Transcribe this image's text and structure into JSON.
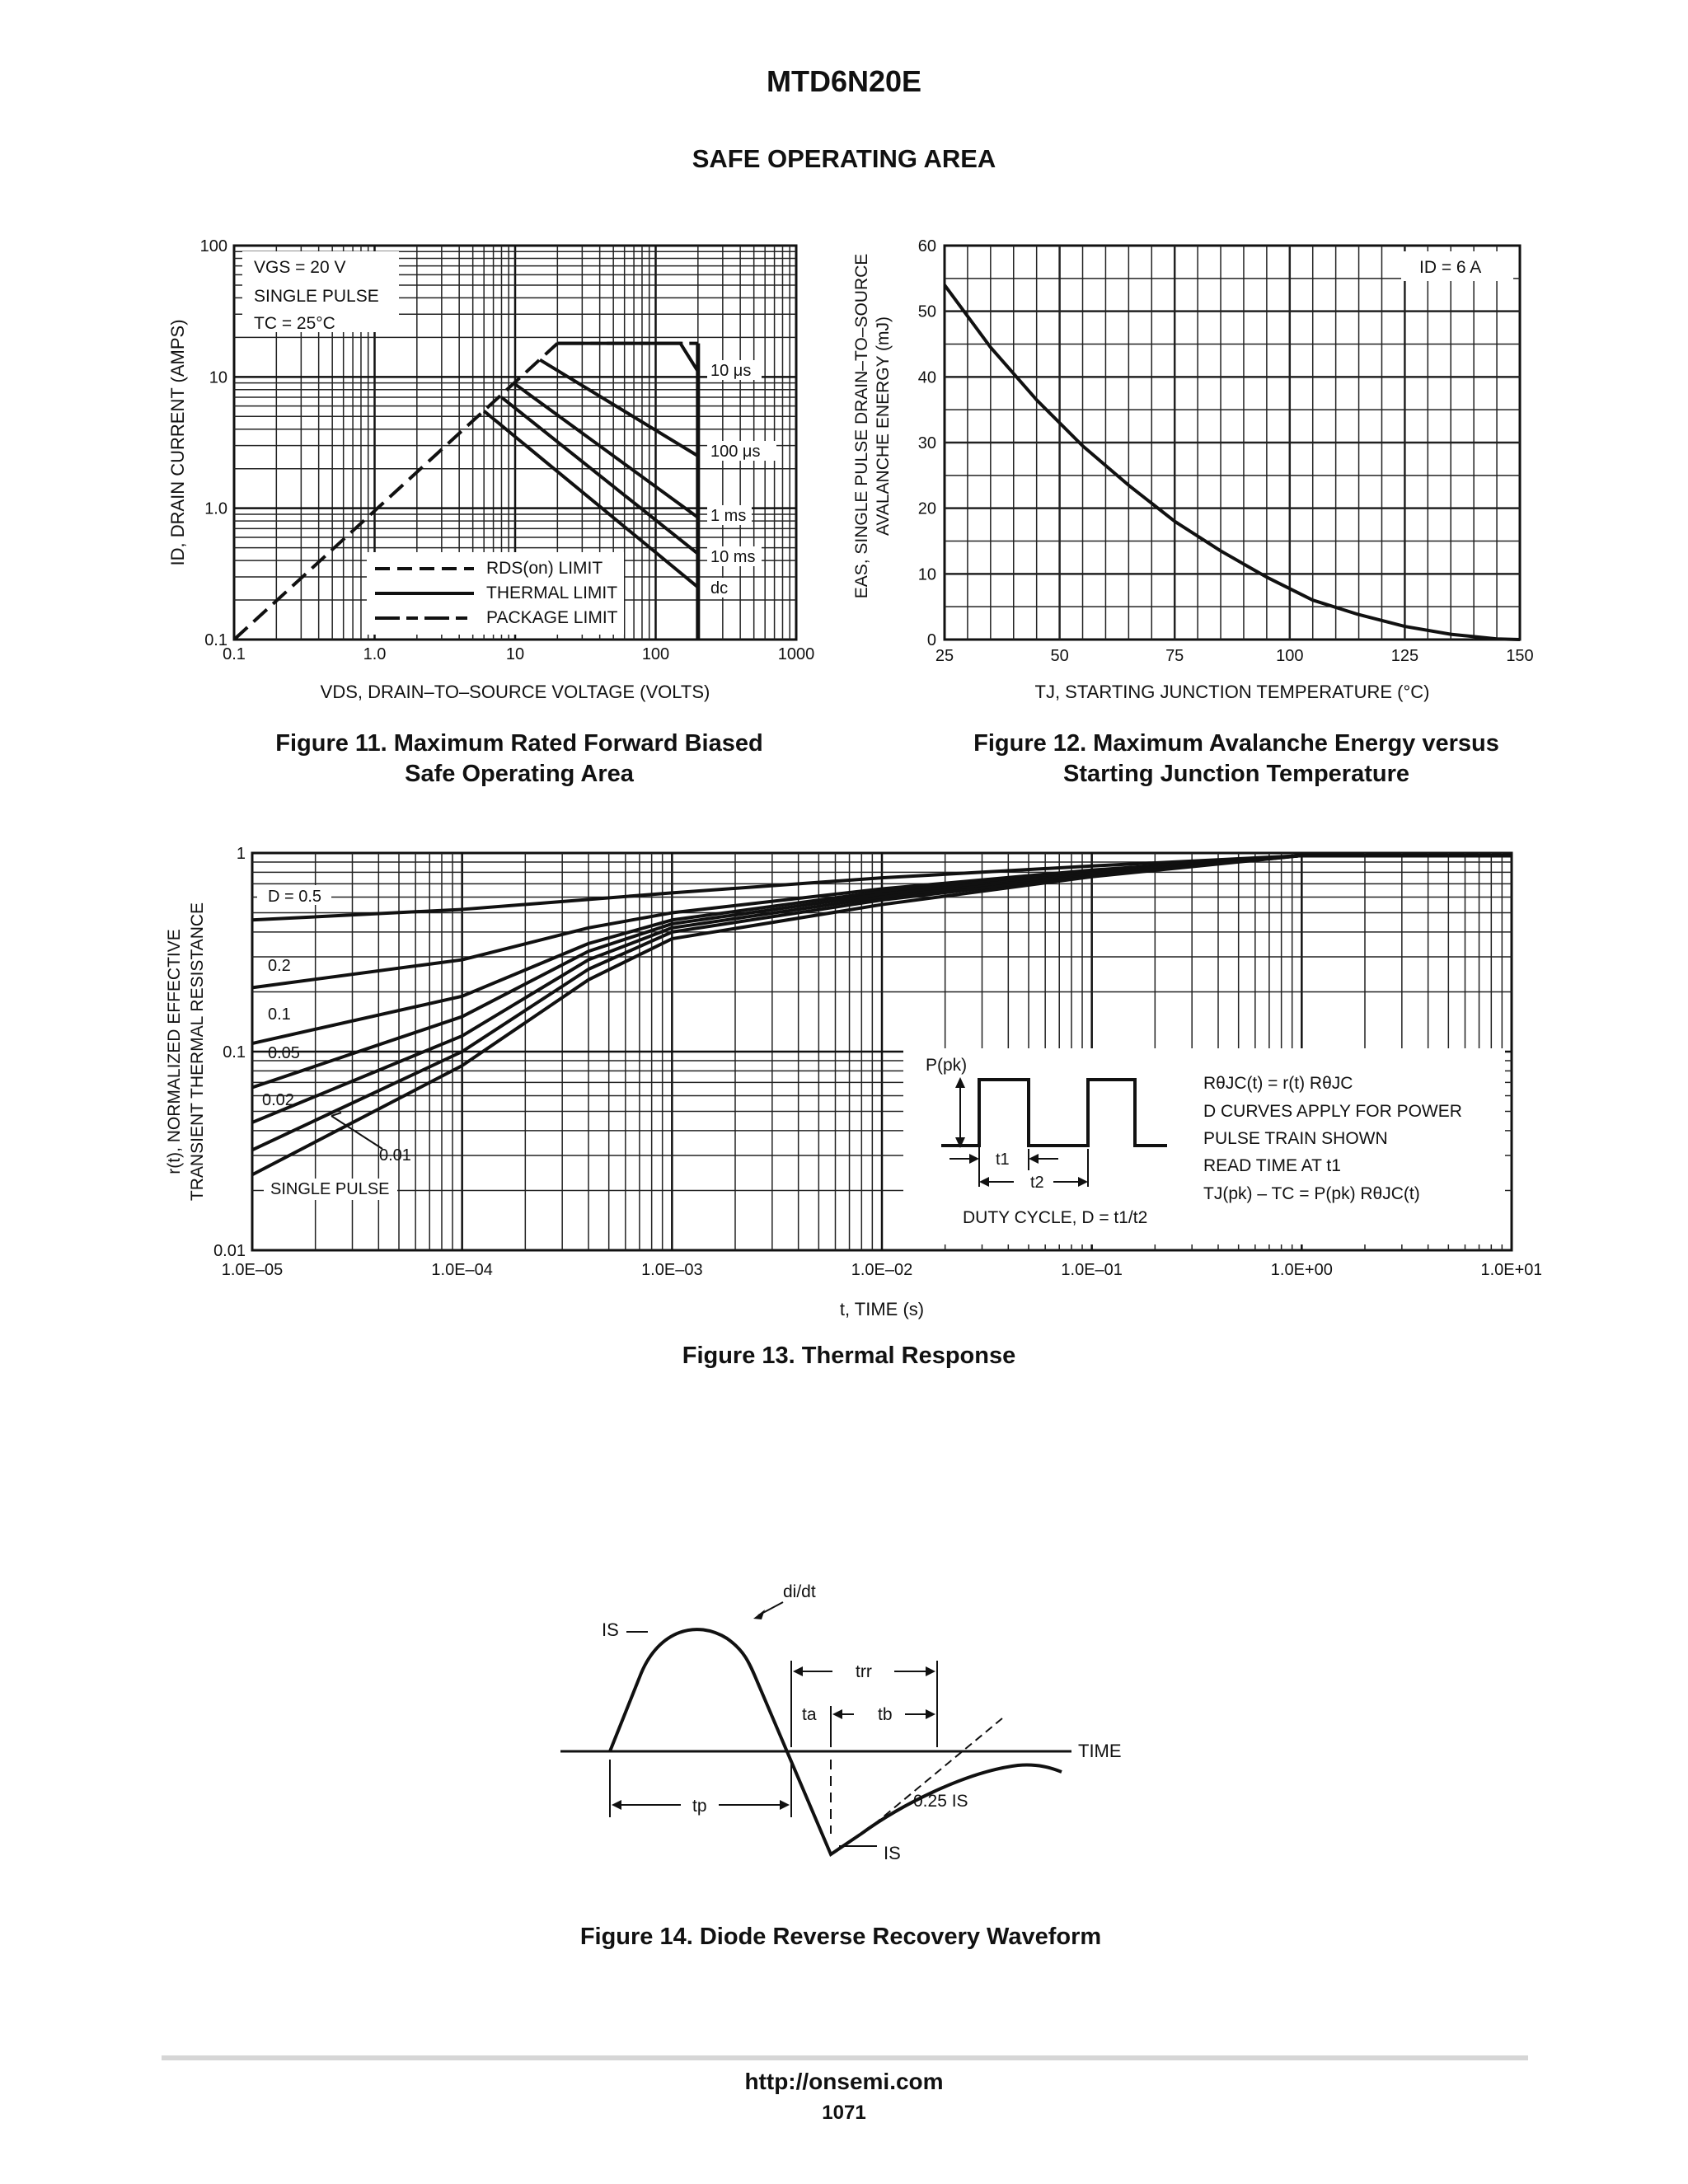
{
  "header": {
    "part_number": "MTD6N20E",
    "section": "SAFE OPERATING AREA"
  },
  "fig11": {
    "caption_line1": "Figure 11. Maximum Rated Forward Biased",
    "caption_line2": "Safe Operating Area",
    "ylabel": "ID, DRAIN CURRENT (AMPS)",
    "xlabel": "VDS, DRAIN–TO–SOURCE VOLTAGE (VOLTS)",
    "conditions": [
      "VGS = 20 V",
      "SINGLE PULSE",
      "TC = 25°C"
    ],
    "legend": [
      "RDS(on) LIMIT",
      "THERMAL LIMIT",
      "PACKAGE LIMIT"
    ],
    "curve_labels": [
      "10 μs",
      "100 μs",
      "1 ms",
      "10 ms",
      "dc"
    ]
  },
  "fig12": {
    "caption_line1": "Figure 12. Maximum Avalanche Energy versus",
    "caption_line2": "Starting Junction Temperature",
    "ylabel_line1": "EAS, SINGLE PULSE DRAIN–TO–SOURCE",
    "ylabel_line2": "AVALANCHE ENERGY (mJ)",
    "xlabel": "TJ, STARTING JUNCTION TEMPERATURE (°C)",
    "condition": "ID = 6 A"
  },
  "fig13": {
    "caption": "Figure 13. Thermal Response",
    "ylabel_line1": "r(t), NORMALIZED EFFECTIVE",
    "ylabel_line2": "TRANSIENT THERMAL RESISTANCE",
    "xlabel": "t, TIME (s)",
    "curve_labels": [
      "D = 0.5",
      "0.2",
      "0.1",
      "0.05",
      "0.02",
      "0.01",
      "SINGLE PULSE"
    ],
    "inset_ppk": "P(pk)",
    "inset_t1": "t1",
    "inset_t2": "t2",
    "inset_duty": "DUTY CYCLE, D = t1/t2",
    "notes": [
      "RθJC(t) = r(t) RθJC",
      "D CURVES APPLY FOR POWER",
      "PULSE TRAIN SHOWN",
      "READ TIME AT t1",
      "TJ(pk) – TC = P(pk) RθJC(t)"
    ]
  },
  "fig14": {
    "caption": "Figure 14. Diode Reverse Recovery Waveform",
    "labels": {
      "didt": "di/dt",
      "is_top": "IS",
      "trr": "trr",
      "ta": "ta",
      "tb": "tb",
      "time": "TIME",
      "tp": "tp",
      "quarter_is": "0.25 IS",
      "is_bottom": "IS"
    }
  },
  "chart_data": [
    {
      "type": "line",
      "title": "Figure 11. Maximum Rated Forward Biased Safe Operating Area",
      "xlabel": "VDS, DRAIN–TO–SOURCE VOLTAGE (VOLTS)",
      "ylabel": "ID, DRAIN CURRENT (AMPS)",
      "xscale": "log",
      "yscale": "log",
      "xlim": [
        0.1,
        1000
      ],
      "ylim": [
        0.1,
        100
      ],
      "xticks": [
        "0.1",
        "1.0",
        "10",
        "100",
        "1000"
      ],
      "yticks": [
        "0.1",
        "1.0",
        "10",
        "100"
      ],
      "grid": true,
      "series": [
        {
          "name": "RDS(on) LIMIT",
          "style": "dashed",
          "x": [
            0.1,
            20
          ],
          "y": [
            0.1,
            18
          ]
        },
        {
          "name": "PACKAGE LIMIT",
          "style": "dash-dot",
          "x": [
            20,
            200
          ],
          "y": [
            18,
            18
          ]
        },
        {
          "name": "10 μs",
          "x": [
            20,
            150,
            200
          ],
          "y": [
            18,
            18,
            11
          ]
        },
        {
          "name": "100 μs",
          "x": [
            15,
            200
          ],
          "y": [
            13.5,
            2.5
          ]
        },
        {
          "name": "1 ms",
          "x": [
            10,
            200
          ],
          "y": [
            8.8,
            0.85
          ]
        },
        {
          "name": "10 ms",
          "x": [
            8,
            200
          ],
          "y": [
            7,
            0.45
          ]
        },
        {
          "name": "dc",
          "x": [
            6,
            200
          ],
          "y": [
            5.5,
            0.25
          ]
        }
      ]
    },
    {
      "type": "line",
      "title": "Figure 12. Maximum Avalanche Energy versus Starting Junction Temperature",
      "xlabel": "TJ, STARTING JUNCTION TEMPERATURE (°C)",
      "ylabel": "EAS, SINGLE PULSE DRAIN–TO–SOURCE AVALANCHE ENERGY (mJ)",
      "xlim": [
        25,
        150
      ],
      "ylim": [
        0,
        60
      ],
      "xticks": [
        "25",
        "50",
        "75",
        "100",
        "125",
        "150"
      ],
      "yticks": [
        "0",
        "10",
        "20",
        "30",
        "40",
        "50",
        "60"
      ],
      "grid": true,
      "series": [
        {
          "name": "ID = 6 A",
          "x": [
            25,
            35,
            45,
            55,
            65,
            75,
            85,
            95,
            105,
            115,
            125,
            135,
            145,
            150
          ],
          "y": [
            54,
            44.5,
            36.5,
            29.5,
            23.5,
            18,
            13.5,
            9.5,
            6,
            3.8,
            2,
            0.8,
            0.1,
            0
          ]
        }
      ]
    },
    {
      "type": "line",
      "title": "Figure 13. Thermal Response",
      "xlabel": "t, TIME (s)",
      "ylabel": "r(t), NORMALIZED EFFECTIVE TRANSIENT THERMAL RESISTANCE",
      "xscale": "log",
      "yscale": "log",
      "xlim": [
        1e-05,
        10
      ],
      "ylim": [
        0.01,
        1
      ],
      "xticks": [
        "1.0E–05",
        "1.0E–04",
        "1.0E–03",
        "1.0E–02",
        "1.0E–01",
        "1.0E+00",
        "1.0E+01"
      ],
      "yticks": [
        "0.01",
        "0.1",
        "1"
      ],
      "grid": true,
      "series": [
        {
          "name": "D = 0.5",
          "x": [
            1e-05,
            0.0001,
            0.001,
            0.01,
            0.1,
            1,
            10
          ],
          "y": [
            0.46,
            0.52,
            0.63,
            0.75,
            0.86,
            0.97,
            0.97
          ]
        },
        {
          "name": "0.2",
          "x": [
            1e-05,
            0.0001,
            0.0004,
            0.001,
            0.01,
            0.1,
            1,
            10
          ],
          "y": [
            0.21,
            0.29,
            0.42,
            0.5,
            0.66,
            0.82,
            0.97,
            0.97
          ]
        },
        {
          "name": "0.1",
          "x": [
            1e-05,
            0.0001,
            0.0004,
            0.001,
            0.01,
            0.1,
            1,
            10
          ],
          "y": [
            0.11,
            0.19,
            0.35,
            0.46,
            0.64,
            0.8,
            0.97,
            0.97
          ]
        },
        {
          "name": "0.05",
          "x": [
            1e-05,
            0.0001,
            0.0004,
            0.001,
            0.01,
            0.1,
            1,
            10
          ],
          "y": [
            0.066,
            0.15,
            0.32,
            0.44,
            0.62,
            0.79,
            0.97,
            0.97
          ]
        },
        {
          "name": "0.02",
          "x": [
            1e-05,
            0.0001,
            0.0004,
            0.001,
            0.01,
            0.1,
            1,
            10
          ],
          "y": [
            0.044,
            0.12,
            0.29,
            0.42,
            0.6,
            0.78,
            0.97,
            0.97
          ]
        },
        {
          "name": "0.01",
          "x": [
            1e-05,
            0.0001,
            0.0004,
            0.001,
            0.01,
            0.1,
            1,
            10
          ],
          "y": [
            0.032,
            0.1,
            0.26,
            0.4,
            0.58,
            0.77,
            0.97,
            0.97
          ]
        },
        {
          "name": "SINGLE PULSE",
          "x": [
            1e-05,
            0.0001,
            0.0004,
            0.001,
            0.01,
            0.1,
            1,
            10
          ],
          "y": [
            0.024,
            0.085,
            0.23,
            0.37,
            0.55,
            0.76,
            0.97,
            0.97
          ]
        }
      ]
    }
  ]
}
